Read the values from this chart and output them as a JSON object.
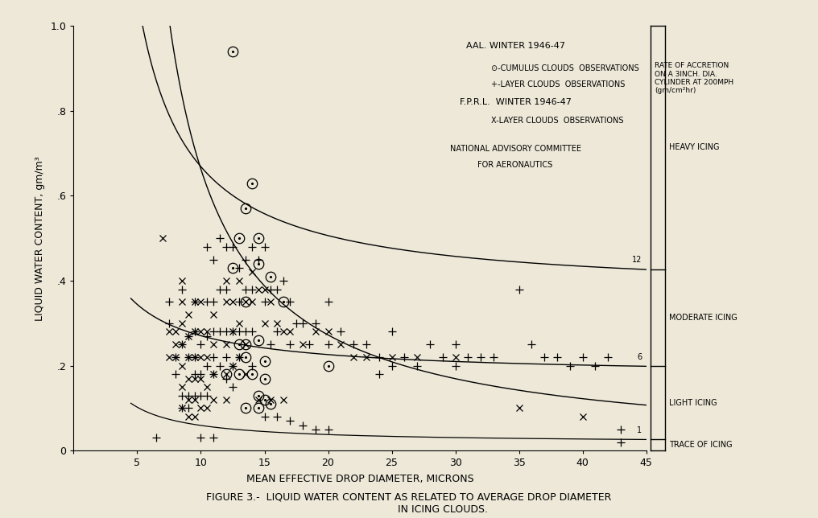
{
  "bg_color": "#ede8d8",
  "xlabel": "MEAN EFFECTIVE DROP DIAMETER, MICRONS",
  "ylabel": "LIQUID WATER CONTENT, gm/m³",
  "xlim": [
    0,
    45
  ],
  "ylim": [
    0,
    1.0
  ],
  "xticks": [
    0,
    5,
    10,
    15,
    20,
    25,
    30,
    35,
    40,
    45
  ],
  "yticks": [
    0,
    0.2,
    0.4,
    0.6,
    0.8,
    1.0
  ],
  "ytick_labels": [
    "0",
    ".2",
    ".4",
    ".6",
    ".8",
    "1.0"
  ],
  "circle_points": [
    [
      12.5,
      0.94
    ],
    [
      14.0,
      0.63
    ],
    [
      13.5,
      0.57
    ],
    [
      13.0,
      0.5
    ],
    [
      14.5,
      0.5
    ],
    [
      12.5,
      0.43
    ],
    [
      14.5,
      0.44
    ],
    [
      15.5,
      0.41
    ],
    [
      13.5,
      0.35
    ],
    [
      16.5,
      0.35
    ],
    [
      13.0,
      0.25
    ],
    [
      13.5,
      0.25
    ],
    [
      14.5,
      0.26
    ],
    [
      13.5,
      0.22
    ],
    [
      15.0,
      0.21
    ],
    [
      20.0,
      0.2
    ],
    [
      12.0,
      0.18
    ],
    [
      13.0,
      0.18
    ],
    [
      14.0,
      0.18
    ],
    [
      15.0,
      0.17
    ],
    [
      14.5,
      0.13
    ],
    [
      15.0,
      0.12
    ],
    [
      15.5,
      0.11
    ],
    [
      13.5,
      0.1
    ],
    [
      14.5,
      0.1
    ]
  ],
  "plus_points": [
    [
      6.5,
      0.03
    ],
    [
      7.5,
      0.35
    ],
    [
      7.5,
      0.3
    ],
    [
      8.0,
      0.22
    ],
    [
      8.0,
      0.18
    ],
    [
      8.5,
      0.38
    ],
    [
      8.5,
      0.25
    ],
    [
      8.5,
      0.13
    ],
    [
      8.5,
      0.1
    ],
    [
      9.0,
      0.27
    ],
    [
      9.0,
      0.22
    ],
    [
      9.0,
      0.13
    ],
    [
      9.0,
      0.1
    ],
    [
      9.5,
      0.35
    ],
    [
      9.5,
      0.28
    ],
    [
      9.5,
      0.22
    ],
    [
      9.5,
      0.18
    ],
    [
      9.5,
      0.13
    ],
    [
      10.0,
      0.25
    ],
    [
      10.0,
      0.18
    ],
    [
      10.0,
      0.13
    ],
    [
      10.5,
      0.48
    ],
    [
      10.5,
      0.35
    ],
    [
      10.5,
      0.27
    ],
    [
      10.5,
      0.2
    ],
    [
      10.5,
      0.13
    ],
    [
      11.0,
      0.45
    ],
    [
      11.0,
      0.35
    ],
    [
      11.0,
      0.28
    ],
    [
      11.0,
      0.22
    ],
    [
      11.0,
      0.18
    ],
    [
      11.5,
      0.5
    ],
    [
      11.5,
      0.38
    ],
    [
      11.5,
      0.28
    ],
    [
      11.5,
      0.2
    ],
    [
      12.0,
      0.48
    ],
    [
      12.0,
      0.38
    ],
    [
      12.0,
      0.28
    ],
    [
      12.0,
      0.22
    ],
    [
      12.0,
      0.17
    ],
    [
      12.5,
      0.48
    ],
    [
      12.5,
      0.28
    ],
    [
      12.5,
      0.2
    ],
    [
      12.5,
      0.15
    ],
    [
      13.0,
      0.43
    ],
    [
      13.0,
      0.35
    ],
    [
      13.0,
      0.28
    ],
    [
      13.0,
      0.22
    ],
    [
      13.5,
      0.45
    ],
    [
      13.5,
      0.38
    ],
    [
      13.5,
      0.28
    ],
    [
      14.0,
      0.48
    ],
    [
      14.0,
      0.38
    ],
    [
      14.0,
      0.28
    ],
    [
      14.0,
      0.2
    ],
    [
      14.5,
      0.45
    ],
    [
      15.0,
      0.48
    ],
    [
      15.0,
      0.35
    ],
    [
      15.5,
      0.38
    ],
    [
      15.5,
      0.25
    ],
    [
      16.0,
      0.38
    ],
    [
      16.0,
      0.28
    ],
    [
      16.5,
      0.4
    ],
    [
      17.0,
      0.35
    ],
    [
      17.0,
      0.25
    ],
    [
      17.5,
      0.3
    ],
    [
      18.0,
      0.3
    ],
    [
      18.5,
      0.25
    ],
    [
      19.0,
      0.3
    ],
    [
      20.0,
      0.35
    ],
    [
      20.0,
      0.25
    ],
    [
      21.0,
      0.28
    ],
    [
      22.0,
      0.25
    ],
    [
      23.0,
      0.25
    ],
    [
      24.0,
      0.22
    ],
    [
      24.0,
      0.18
    ],
    [
      25.0,
      0.28
    ],
    [
      25.0,
      0.2
    ],
    [
      26.0,
      0.22
    ],
    [
      27.0,
      0.2
    ],
    [
      28.0,
      0.25
    ],
    [
      29.0,
      0.22
    ],
    [
      30.0,
      0.25
    ],
    [
      30.0,
      0.2
    ],
    [
      31.0,
      0.22
    ],
    [
      32.0,
      0.22
    ],
    [
      33.0,
      0.22
    ],
    [
      35.0,
      0.38
    ],
    [
      36.0,
      0.25
    ],
    [
      37.0,
      0.22
    ],
    [
      38.0,
      0.22
    ],
    [
      39.0,
      0.2
    ],
    [
      40.0,
      0.22
    ],
    [
      41.0,
      0.2
    ],
    [
      42.0,
      0.22
    ],
    [
      43.0,
      0.05
    ],
    [
      43.0,
      0.02
    ],
    [
      15.0,
      0.08
    ],
    [
      16.0,
      0.08
    ],
    [
      17.0,
      0.07
    ],
    [
      18.0,
      0.06
    ],
    [
      19.0,
      0.05
    ],
    [
      20.0,
      0.05
    ],
    [
      10.0,
      0.03
    ],
    [
      11.0,
      0.03
    ]
  ],
  "x_points": [
    [
      7.0,
      0.5
    ],
    [
      7.5,
      0.28
    ],
    [
      7.5,
      0.22
    ],
    [
      8.0,
      0.28
    ],
    [
      8.0,
      0.25
    ],
    [
      8.0,
      0.22
    ],
    [
      8.5,
      0.4
    ],
    [
      8.5,
      0.35
    ],
    [
      8.5,
      0.3
    ],
    [
      8.5,
      0.25
    ],
    [
      8.5,
      0.2
    ],
    [
      8.5,
      0.15
    ],
    [
      8.5,
      0.1
    ],
    [
      9.0,
      0.32
    ],
    [
      9.0,
      0.27
    ],
    [
      9.0,
      0.22
    ],
    [
      9.0,
      0.17
    ],
    [
      9.0,
      0.12
    ],
    [
      9.0,
      0.08
    ],
    [
      9.5,
      0.35
    ],
    [
      9.5,
      0.28
    ],
    [
      9.5,
      0.22
    ],
    [
      9.5,
      0.17
    ],
    [
      9.5,
      0.12
    ],
    [
      9.5,
      0.08
    ],
    [
      10.0,
      0.35
    ],
    [
      10.0,
      0.28
    ],
    [
      10.0,
      0.22
    ],
    [
      10.0,
      0.17
    ],
    [
      10.0,
      0.1
    ],
    [
      10.5,
      0.28
    ],
    [
      10.5,
      0.22
    ],
    [
      10.5,
      0.15
    ],
    [
      10.5,
      0.1
    ],
    [
      11.0,
      0.32
    ],
    [
      11.0,
      0.25
    ],
    [
      11.0,
      0.18
    ],
    [
      11.0,
      0.12
    ],
    [
      12.0,
      0.4
    ],
    [
      12.0,
      0.35
    ],
    [
      12.0,
      0.25
    ],
    [
      12.0,
      0.18
    ],
    [
      12.0,
      0.12
    ],
    [
      12.5,
      0.35
    ],
    [
      12.5,
      0.28
    ],
    [
      12.5,
      0.2
    ],
    [
      13.0,
      0.4
    ],
    [
      13.0,
      0.3
    ],
    [
      13.0,
      0.22
    ],
    [
      13.5,
      0.35
    ],
    [
      13.5,
      0.25
    ],
    [
      13.5,
      0.18
    ],
    [
      14.0,
      0.42
    ],
    [
      14.0,
      0.35
    ],
    [
      14.5,
      0.38
    ],
    [
      15.0,
      0.38
    ],
    [
      15.0,
      0.3
    ],
    [
      15.5,
      0.35
    ],
    [
      16.0,
      0.3
    ],
    [
      16.5,
      0.28
    ],
    [
      17.0,
      0.28
    ],
    [
      18.0,
      0.25
    ],
    [
      19.0,
      0.28
    ],
    [
      20.0,
      0.28
    ],
    [
      21.0,
      0.25
    ],
    [
      22.0,
      0.22
    ],
    [
      23.0,
      0.22
    ],
    [
      25.0,
      0.22
    ],
    [
      27.0,
      0.22
    ],
    [
      30.0,
      0.22
    ],
    [
      35.0,
      0.1
    ],
    [
      40.0,
      0.08
    ],
    [
      14.5,
      0.12
    ],
    [
      15.5,
      0.12
    ],
    [
      16.5,
      0.12
    ]
  ]
}
